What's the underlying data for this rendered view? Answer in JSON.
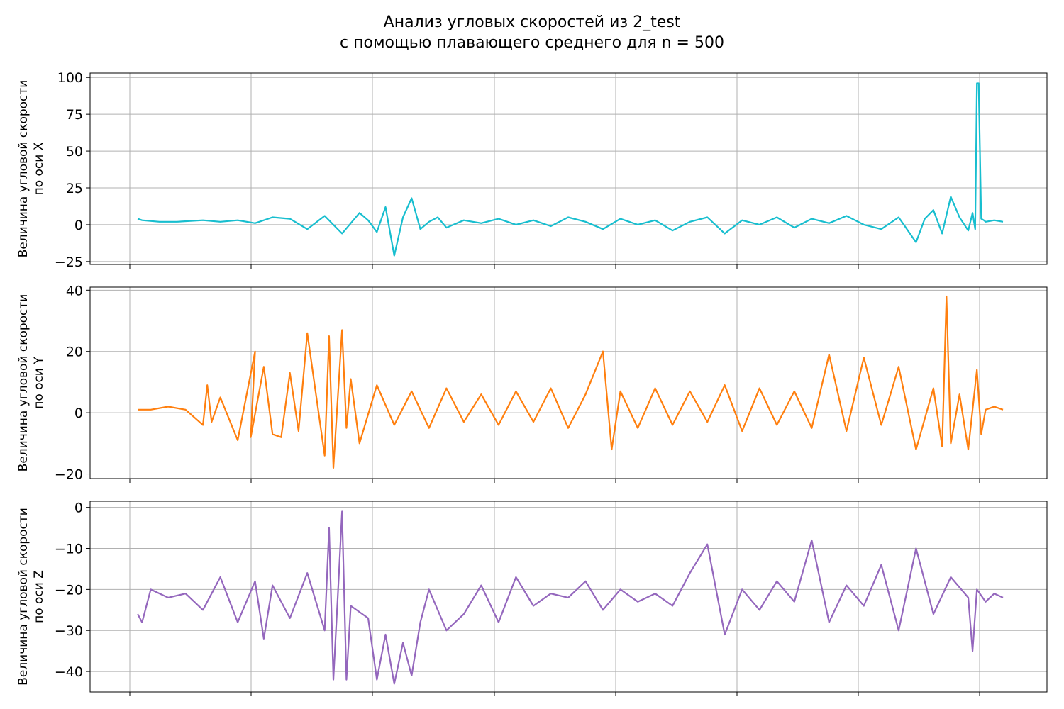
{
  "title": [
    "Анализ угловых скоростей из 2_test",
    "с помощью плавающего среднего для n = 500"
  ],
  "chart_data": [
    {
      "type": "line",
      "ylabel": [
        "Величина угловой скорости",
        "по оси X"
      ],
      "ylim": [
        -27,
        103
      ],
      "yticks": [
        100,
        75,
        50,
        25,
        0,
        -25
      ],
      "ytick_labels": [
        "100",
        "75",
        "50",
        "25",
        "0",
        "−25"
      ],
      "grid": true,
      "series": [
        {
          "color": "#17becf",
          "x": [
            0.005,
            0.01,
            0.03,
            0.05,
            0.08,
            0.1,
            0.12,
            0.14,
            0.16,
            0.18,
            0.2,
            0.22,
            0.24,
            0.26,
            0.27,
            0.28,
            0.29,
            0.3,
            0.31,
            0.32,
            0.33,
            0.34,
            0.35,
            0.36,
            0.38,
            0.4,
            0.42,
            0.44,
            0.46,
            0.48,
            0.5,
            0.52,
            0.54,
            0.56,
            0.58,
            0.6,
            0.62,
            0.64,
            0.66,
            0.68,
            0.7,
            0.72,
            0.74,
            0.76,
            0.78,
            0.8,
            0.82,
            0.84,
            0.86,
            0.88,
            0.9,
            0.91,
            0.92,
            0.93,
            0.94,
            0.95,
            0.96,
            0.965,
            0.968,
            0.97,
            0.972,
            0.975,
            0.978,
            0.98,
            0.99,
            1.0
          ],
          "y": [
            4,
            3,
            2,
            2,
            3,
            2,
            3,
            1,
            5,
            4,
            -3,
            6,
            -6,
            8,
            3,
            -5,
            12,
            -21,
            5,
            18,
            -3,
            2,
            5,
            -2,
            3,
            1,
            4,
            0,
            3,
            -1,
            5,
            2,
            -3,
            4,
            0,
            3,
            -4,
            2,
            5,
            -6,
            3,
            0,
            5,
            -2,
            4,
            1,
            6,
            0,
            -3,
            5,
            -12,
            4,
            10,
            -6,
            19,
            5,
            -4,
            8,
            -3,
            96,
            96,
            4,
            3,
            2,
            3,
            2
          ]
        }
      ]
    },
    {
      "type": "line",
      "ylabel": [
        "Величина угловой скорости",
        "по оси Y"
      ],
      "ylim": [
        -21.5,
        41
      ],
      "yticks": [
        40,
        20,
        0,
        -20
      ],
      "ytick_labels": [
        "40",
        "20",
        "0",
        "−20"
      ],
      "grid": true,
      "series": [
        {
          "color": "#ff7f0e",
          "x": [
            0.005,
            0.02,
            0.04,
            0.06,
            0.08,
            0.085,
            0.09,
            0.1,
            0.12,
            0.14,
            0.135,
            0.15,
            0.16,
            0.17,
            0.18,
            0.19,
            0.2,
            0.22,
            0.225,
            0.23,
            0.24,
            0.245,
            0.25,
            0.26,
            0.28,
            0.3,
            0.32,
            0.34,
            0.36,
            0.38,
            0.4,
            0.42,
            0.44,
            0.46,
            0.48,
            0.5,
            0.52,
            0.54,
            0.55,
            0.56,
            0.58,
            0.6,
            0.62,
            0.64,
            0.66,
            0.68,
            0.7,
            0.72,
            0.74,
            0.76,
            0.78,
            0.8,
            0.82,
            0.84,
            0.86,
            0.88,
            0.9,
            0.92,
            0.93,
            0.935,
            0.94,
            0.95,
            0.96,
            0.97,
            0.975,
            0.98,
            0.99,
            1.0
          ],
          "y": [
            1,
            1,
            2,
            1,
            -4,
            9,
            -3,
            5,
            -9,
            20,
            -8,
            15,
            -7,
            -8,
            13,
            -6,
            26,
            -14,
            25,
            -18,
            27,
            -5,
            11,
            -10,
            9,
            -4,
            7,
            -5,
            8,
            -3,
            6,
            -4,
            7,
            -3,
            8,
            -5,
            6,
            20,
            -12,
            7,
            -5,
            8,
            -4,
            7,
            -3,
            9,
            -6,
            8,
            -4,
            7,
            -5,
            19,
            -6,
            18,
            -4,
            15,
            -12,
            8,
            -11,
            38,
            -10,
            6,
            -12,
            14,
            -7,
            1,
            2,
            1
          ]
        }
      ]
    },
    {
      "type": "line",
      "ylabel": [
        "Величина угловой скорости",
        "по оси Z"
      ],
      "ylim": [
        -45,
        1.5
      ],
      "yticks": [
        0,
        -10,
        -20,
        -30,
        -40
      ],
      "ytick_labels": [
        "0",
        "−10",
        "−20",
        "−30",
        "−40"
      ],
      "grid": true,
      "series": [
        {
          "color": "#9467bd",
          "x": [
            0.005,
            0.01,
            0.02,
            0.04,
            0.06,
            0.08,
            0.1,
            0.12,
            0.14,
            0.15,
            0.16,
            0.18,
            0.2,
            0.22,
            0.225,
            0.23,
            0.235,
            0.24,
            0.245,
            0.25,
            0.27,
            0.28,
            0.29,
            0.3,
            0.31,
            0.32,
            0.33,
            0.34,
            0.36,
            0.38,
            0.4,
            0.42,
            0.44,
            0.46,
            0.48,
            0.5,
            0.52,
            0.54,
            0.56,
            0.58,
            0.6,
            0.62,
            0.64,
            0.66,
            0.68,
            0.7,
            0.72,
            0.74,
            0.76,
            0.78,
            0.8,
            0.82,
            0.84,
            0.86,
            0.88,
            0.9,
            0.92,
            0.94,
            0.96,
            0.965,
            0.97,
            0.98,
            0.99,
            1.0
          ],
          "y": [
            -26,
            -28,
            -20,
            -22,
            -21,
            -25,
            -17,
            -28,
            -18,
            -32,
            -19,
            -27,
            -16,
            -30,
            -5,
            -42,
            -22,
            -1,
            -42,
            -24,
            -27,
            -42,
            -31,
            -43,
            -33,
            -41,
            -28,
            -20,
            -30,
            -26,
            -19,
            -28,
            -17,
            -24,
            -21,
            -22,
            -18,
            -25,
            -20,
            -23,
            -21,
            -24,
            -16,
            -9,
            -31,
            -20,
            -25,
            -18,
            -23,
            -8,
            -28,
            -19,
            -24,
            -14,
            -30,
            -10,
            -26,
            -17,
            -22,
            -35,
            -20,
            -23,
            -21,
            -22
          ]
        }
      ]
    }
  ]
}
